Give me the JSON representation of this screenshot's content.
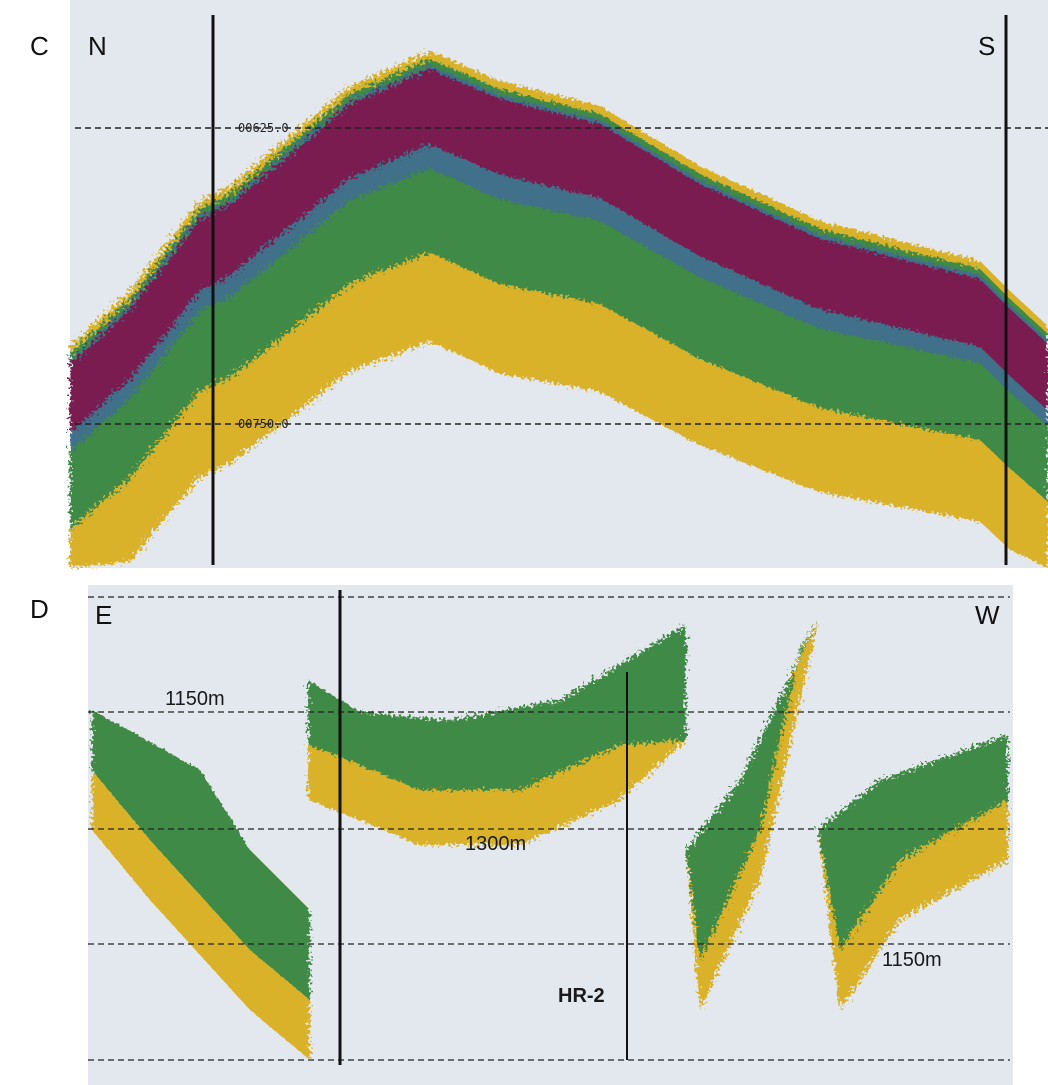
{
  "panels": [
    {
      "label": "C",
      "left": "N",
      "right": "S",
      "depth_marks": [
        "00625.0",
        "00750.0"
      ]
    },
    {
      "label": "D",
      "left": "E",
      "right": "W",
      "annotations": [
        "1150m",
        "1300m",
        "HR-2",
        "1150m"
      ]
    }
  ]
}
